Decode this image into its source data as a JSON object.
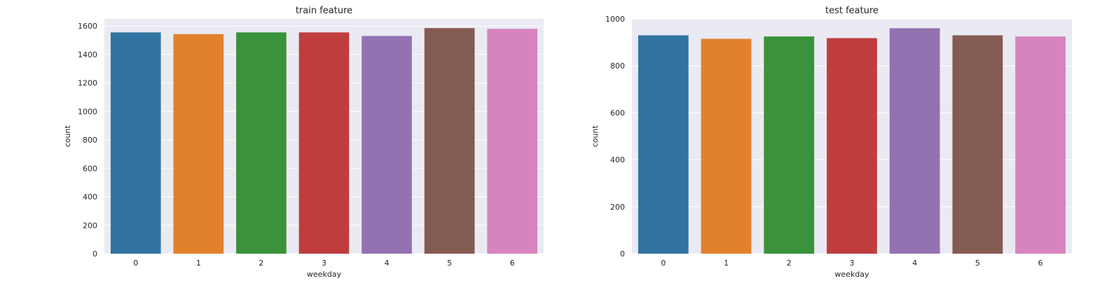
{
  "style": {
    "plot_background": "#eaeaf2",
    "grid_color": "#ffffff",
    "bar_colors": [
      "#3274a1",
      "#e1812c",
      "#3a923a",
      "#c03d3e",
      "#9372b2",
      "#845b53",
      "#d684bd"
    ]
  },
  "chart_data": [
    {
      "type": "bar",
      "title": "train feature",
      "xlabel": "weekday",
      "ylabel": "count",
      "categories": [
        "0",
        "1",
        "2",
        "3",
        "4",
        "5",
        "6"
      ],
      "values": [
        1555,
        1543,
        1555,
        1555,
        1530,
        1585,
        1580
      ],
      "ylim": [
        0,
        1650
      ],
      "yticks": [
        0,
        200,
        400,
        600,
        800,
        1000,
        1200,
        1400,
        1600
      ],
      "grid": true,
      "legend": "none"
    },
    {
      "type": "bar",
      "title": "test feature",
      "xlabel": "weekday",
      "ylabel": "count",
      "categories": [
        "0",
        "1",
        "2",
        "3",
        "4",
        "5",
        "6"
      ],
      "values": [
        930,
        915,
        925,
        918,
        960,
        930,
        925
      ],
      "ylim": [
        0,
        1000
      ],
      "yticks": [
        0,
        200,
        400,
        600,
        800,
        1000
      ],
      "grid": true,
      "legend": "none"
    }
  ]
}
